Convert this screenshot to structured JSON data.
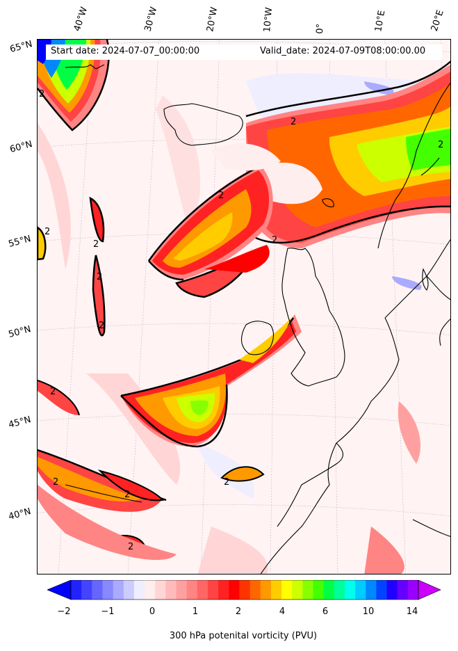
{
  "map": {
    "title_start": "Start date: 2024-07-07_00:00:00",
    "title_valid": "Valid_date: 2024-07-09T08:00:00.00",
    "lon_labels": [
      "40°W",
      "30°W",
      "20°W",
      "10°W",
      "0°",
      "10°E",
      "20°E"
    ],
    "lat_labels": [
      "65°N",
      "60°N",
      "55°N",
      "50°N",
      "45°N",
      "40°N"
    ],
    "contour_label": "2",
    "region": "North Atlantic and Europe",
    "field": "300 hPa potential vorticity"
  },
  "colorbar": {
    "label": "300 hPa potenital vorticity (PVU)",
    "ticks": [
      "−2",
      "−1",
      "0",
      "1",
      "2",
      "4",
      "6",
      "10",
      "14"
    ],
    "colors": [
      "#0000ff",
      "#2222ff",
      "#4444ff",
      "#6666ff",
      "#8888ff",
      "#aaaaff",
      "#ccccff",
      "#eeeeff",
      "#ffeeee",
      "#ffd5d5",
      "#ffbbbb",
      "#ffa0a0",
      "#ff8484",
      "#ff6666",
      "#ff4444",
      "#ff2222",
      "#ff0000",
      "#ff3300",
      "#ff6600",
      "#ff9900",
      "#ffcc00",
      "#ffff00",
      "#ccff00",
      "#88ff00",
      "#44ff00",
      "#00ff44",
      "#00ff99",
      "#00ffee",
      "#00ccff",
      "#0088ff",
      "#0044ff",
      "#2200ff",
      "#6600ff",
      "#9900ff",
      "#cc00ff"
    ]
  }
}
